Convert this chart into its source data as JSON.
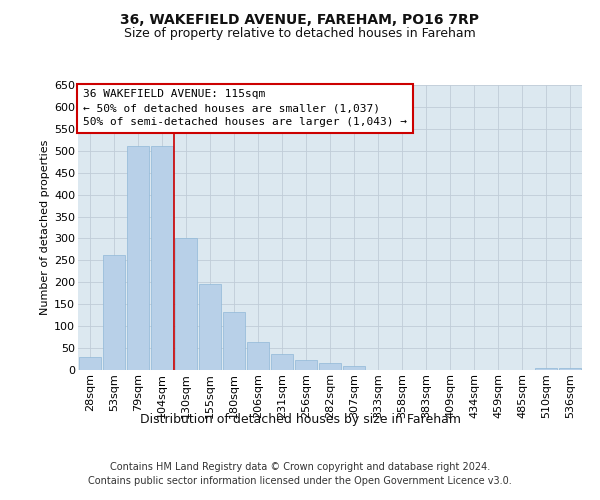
{
  "title": "36, WAKEFIELD AVENUE, FAREHAM, PO16 7RP",
  "subtitle": "Size of property relative to detached houses in Fareham",
  "xlabel": "Distribution of detached houses by size in Fareham",
  "ylabel": "Number of detached properties",
  "categories": [
    "28sqm",
    "53sqm",
    "79sqm",
    "104sqm",
    "130sqm",
    "155sqm",
    "180sqm",
    "206sqm",
    "231sqm",
    "256sqm",
    "282sqm",
    "307sqm",
    "333sqm",
    "358sqm",
    "383sqm",
    "409sqm",
    "434sqm",
    "459sqm",
    "485sqm",
    "510sqm",
    "536sqm"
  ],
  "values": [
    30,
    263,
    510,
    510,
    302,
    197,
    132,
    65,
    37,
    22,
    15,
    8,
    0,
    0,
    0,
    0,
    0,
    0,
    0,
    5,
    5
  ],
  "bar_color": "#b8d0e8",
  "bar_edge_color": "#90b8d8",
  "vline_pos": 3.5,
  "vline_color": "#cc0000",
  "annotation_line1": "36 WAKEFIELD AVENUE: 115sqm",
  "annotation_line2": "← 50% of detached houses are smaller (1,037)",
  "annotation_line3": "50% of semi-detached houses are larger (1,043) →",
  "ylim": [
    0,
    650
  ],
  "yticks": [
    0,
    50,
    100,
    150,
    200,
    250,
    300,
    350,
    400,
    450,
    500,
    550,
    600,
    650
  ],
  "bg_color": "#dce8f0",
  "grid_color": "#c0ccd8",
  "footer_line1": "Contains HM Land Registry data © Crown copyright and database right 2024.",
  "footer_line2": "Contains public sector information licensed under the Open Government Licence v3.0.",
  "title_fontsize": 10,
  "subtitle_fontsize": 9,
  "xlabel_fontsize": 9,
  "ylabel_fontsize": 8,
  "tick_fontsize": 8,
  "ann_fontsize": 8,
  "footer_fontsize": 7
}
